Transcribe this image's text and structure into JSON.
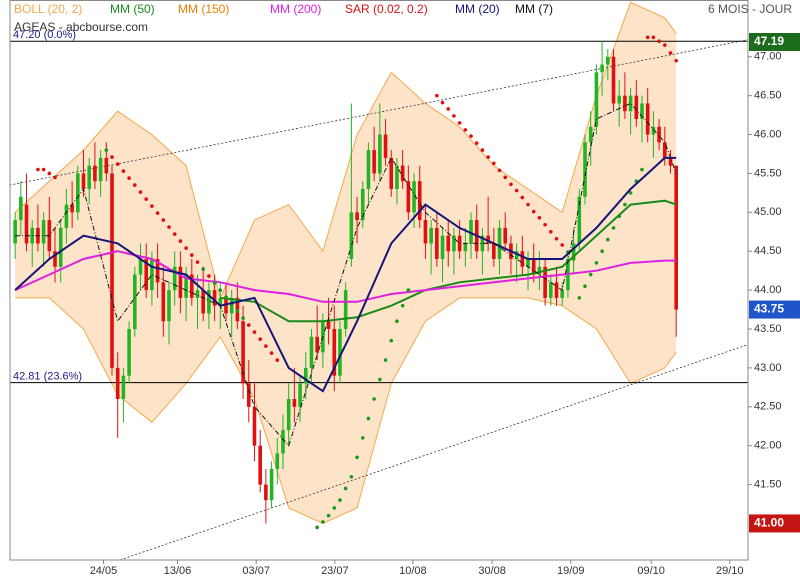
{
  "chart_data": {
    "type": "candlestick",
    "title": "AGEAS - abcbourse.com",
    "period": "6 MOIS - JOUR",
    "up_color": "#22b422",
    "down_color": "#e01010",
    "xlim": [
      -0.9,
      128.6
    ],
    "ylim": [
      40.53,
      47.73
    ],
    "xticks": [
      {
        "value": 15.5,
        "label": "24/05"
      },
      {
        "value": 28.5,
        "label": "13/06"
      },
      {
        "value": 42.3,
        "label": "03/07"
      },
      {
        "value": 56.1,
        "label": "23/07"
      },
      {
        "value": 69.8,
        "label": "10/08"
      },
      {
        "value": 83.7,
        "label": "30/08"
      },
      {
        "value": 97.5,
        "label": "19/09"
      },
      {
        "value": 111.6,
        "label": "09/10"
      },
      {
        "value": 125.4,
        "label": "29/10"
      }
    ],
    "yticks": [
      {
        "value": 41.5,
        "label": "41.50"
      },
      {
        "value": 42,
        "label": "42.00"
      },
      {
        "value": 42.5,
        "label": "42.50"
      },
      {
        "value": 43,
        "label": "43.00"
      },
      {
        "value": 43.5,
        "label": "43.50"
      },
      {
        "value": 44,
        "label": "44.00"
      },
      {
        "value": 44.5,
        "label": "44.50"
      },
      {
        "value": 45,
        "label": "45.00"
      },
      {
        "value": 45.5,
        "label": "45.50"
      },
      {
        "value": 46,
        "label": "46.00"
      },
      {
        "value": 46.5,
        "label": "46.50"
      },
      {
        "value": 47,
        "label": "47.00"
      }
    ],
    "candles": [
      [
        44.6,
        45.0,
        44.4,
        44.9
      ],
      [
        44.9,
        45.4,
        44.7,
        45.2
      ],
      [
        45.1,
        45.5,
        44.5,
        44.6
      ],
      [
        44.6,
        44.9,
        44.3,
        44.8
      ],
      [
        44.8,
        45.1,
        44.5,
        44.6
      ],
      [
        44.6,
        45.0,
        44.3,
        44.9
      ],
      [
        44.9,
        45.2,
        44.4,
        44.5
      ],
      [
        44.5,
        44.8,
        44.1,
        44.3
      ],
      [
        44.3,
        44.9,
        44.1,
        44.8
      ],
      [
        44.8,
        45.3,
        44.6,
        45.1
      ],
      [
        45.1,
        45.4,
        44.8,
        45.0
      ],
      [
        45.0,
        45.6,
        44.9,
        45.5
      ],
      [
        45.5,
        45.8,
        45.2,
        45.3
      ],
      [
        45.3,
        45.7,
        45.1,
        45.6
      ],
      [
        45.6,
        45.9,
        45.3,
        45.4
      ],
      [
        45.4,
        45.8,
        45.2,
        45.7
      ],
      [
        45.7,
        45.9,
        45.4,
        45.5
      ],
      [
        45.5,
        45.6,
        42.9,
        43.0
      ],
      [
        43.0,
        43.2,
        42.1,
        42.6
      ],
      [
        42.6,
        43.0,
        42.3,
        42.9
      ],
      [
        42.9,
        43.6,
        42.8,
        43.5
      ],
      [
        43.5,
        44.3,
        43.4,
        44.2
      ],
      [
        44.2,
        44.6,
        44.0,
        44.4
      ],
      [
        44.4,
        44.6,
        43.9,
        44.0
      ],
      [
        44.0,
        44.5,
        43.8,
        44.4
      ],
      [
        44.4,
        44.6,
        43.9,
        44.1
      ],
      [
        44.1,
        44.3,
        43.4,
        43.6
      ],
      [
        43.6,
        44.1,
        43.3,
        44.0
      ],
      [
        44.0,
        44.5,
        43.8,
        44.3
      ],
      [
        44.3,
        44.5,
        43.7,
        43.9
      ],
      [
        43.9,
        44.3,
        43.6,
        44.2
      ],
      [
        44.2,
        44.4,
        43.8,
        43.9
      ],
      [
        43.9,
        44.2,
        43.5,
        44.0
      ],
      [
        44.0,
        44.3,
        43.6,
        43.7
      ],
      [
        43.7,
        44.1,
        43.5,
        44.0
      ],
      [
        44.0,
        44.2,
        43.6,
        43.8
      ],
      [
        43.8,
        44.1,
        43.5,
        43.9
      ],
      [
        43.9,
        44.1,
        43.6,
        43.7
      ],
      [
        43.7,
        44.0,
        43.4,
        43.9
      ],
      [
        43.9,
        44.1,
        43.5,
        43.6
      ],
      [
        43.6,
        43.8,
        42.6,
        42.8
      ],
      [
        42.8,
        43.1,
        42.3,
        42.5
      ],
      [
        42.5,
        42.8,
        41.8,
        42.0
      ],
      [
        42.0,
        42.2,
        41.4,
        41.5
      ],
      [
        41.5,
        41.7,
        41.0,
        41.3
      ],
      [
        41.3,
        41.8,
        41.2,
        41.7
      ],
      [
        41.7,
        42.1,
        41.5,
        41.9
      ],
      [
        41.9,
        42.4,
        41.7,
        42.2
      ],
      [
        42.2,
        42.8,
        42.0,
        42.6
      ],
      [
        42.6,
        43.0,
        42.3,
        42.5
      ],
      [
        42.5,
        42.9,
        42.3,
        42.8
      ],
      [
        42.8,
        43.2,
        42.6,
        43.0
      ],
      [
        43.0,
        43.5,
        42.8,
        43.4
      ],
      [
        43.4,
        43.8,
        43.1,
        43.2
      ],
      [
        43.2,
        43.7,
        43.0,
        43.6
      ],
      [
        43.6,
        43.9,
        43.3,
        43.5
      ],
      [
        43.5,
        43.8,
        42.7,
        42.9
      ],
      [
        42.9,
        43.6,
        42.8,
        43.5
      ],
      [
        43.5,
        44.1,
        43.4,
        44.0
      ],
      [
        44.4,
        46.4,
        44.3,
        45.0
      ],
      [
        45.0,
        45.2,
        44.6,
        44.9
      ],
      [
        44.9,
        45.4,
        44.8,
        45.3
      ],
      [
        45.3,
        45.9,
        45.1,
        45.8
      ],
      [
        45.8,
        46.1,
        45.4,
        45.5
      ],
      [
        45.5,
        46.4,
        45.4,
        46.0
      ],
      [
        46.0,
        46.2,
        45.6,
        45.7
      ],
      [
        45.7,
        45.8,
        45.2,
        45.3
      ],
      [
        45.3,
        45.7,
        45.1,
        45.6
      ],
      [
        45.6,
        45.8,
        45.3,
        45.4
      ],
      [
        45.4,
        45.6,
        44.9,
        45.0
      ],
      [
        45.0,
        45.5,
        44.8,
        45.4
      ],
      [
        45.4,
        45.6,
        44.8,
        44.9
      ],
      [
        44.9,
        45.1,
        44.4,
        44.6
      ],
      [
        44.6,
        44.9,
        44.2,
        44.8
      ],
      [
        44.8,
        45.0,
        44.3,
        44.4
      ],
      [
        44.4,
        44.8,
        44.1,
        44.7
      ],
      [
        44.7,
        44.9,
        44.3,
        44.5
      ],
      [
        44.5,
        44.8,
        44.2,
        44.7
      ],
      [
        44.7,
        44.9,
        44.4,
        44.5
      ],
      [
        44.5,
        44.8,
        44.3,
        44.6
      ],
      [
        44.6,
        45.0,
        44.4,
        44.9
      ],
      [
        44.9,
        45.1,
        44.4,
        44.5
      ],
      [
        44.5,
        44.8,
        44.2,
        44.7
      ],
      [
        44.7,
        45.2,
        44.5,
        44.6
      ],
      [
        44.6,
        44.8,
        44.3,
        44.4
      ],
      [
        44.4,
        44.9,
        44.2,
        44.8
      ],
      [
        44.8,
        45.0,
        44.5,
        44.6
      ],
      [
        44.6,
        44.7,
        44.2,
        44.4
      ],
      [
        44.4,
        44.6,
        44.1,
        44.5
      ],
      [
        44.5,
        44.7,
        44.2,
        44.3
      ],
      [
        44.3,
        44.5,
        44.0,
        44.4
      ],
      [
        44.4,
        44.6,
        44.1,
        44.2
      ],
      [
        44.2,
        44.5,
        44.0,
        44.3
      ],
      [
        44.3,
        44.4,
        43.8,
        43.9
      ],
      [
        43.9,
        44.2,
        43.8,
        44.1
      ],
      [
        44.1,
        44.3,
        43.8,
        43.9
      ],
      [
        43.9,
        44.1,
        43.8,
        44.0
      ],
      [
        44.0,
        44.5,
        43.9,
        44.4
      ],
      [
        44.4,
        44.8,
        44.2,
        44.6
      ],
      [
        44.6,
        45.3,
        44.5,
        45.2
      ],
      [
        45.2,
        46.0,
        45.1,
        45.9
      ],
      [
        45.9,
        46.3,
        45.6,
        46.1
      ],
      [
        46.1,
        46.9,
        46.0,
        46.8
      ],
      [
        46.8,
        47.2,
        46.5,
        46.9
      ],
      [
        46.9,
        47.1,
        46.7,
        47.0
      ],
      [
        47.0,
        47.1,
        46.3,
        46.4
      ],
      [
        46.4,
        46.7,
        46.1,
        46.5
      ],
      [
        46.5,
        46.8,
        46.2,
        46.3
      ],
      [
        46.3,
        46.6,
        46.0,
        46.5
      ],
      [
        46.5,
        46.7,
        46.1,
        46.2
      ],
      [
        46.2,
        46.5,
        45.9,
        46.4
      ],
      [
        46.4,
        46.6,
        45.9,
        46.0
      ],
      [
        46.0,
        46.3,
        45.7,
        46.1
      ],
      [
        46.1,
        46.2,
        45.8,
        45.9
      ],
      [
        45.9,
        46.1,
        45.6,
        45.7
      ],
      [
        45.7,
        45.8,
        45.5,
        45.6
      ],
      [
        45.6,
        45.6,
        43.4,
        43.75
      ]
    ],
    "series": [
      {
        "name": "BOLL (20, 2)",
        "color": "#f5a84a",
        "kind": "band",
        "x": [
          0,
          6,
          12,
          18,
          24,
          30,
          36,
          42,
          48,
          54,
          60,
          66,
          72,
          78,
          84,
          90,
          96,
          102,
          108,
          114,
          116
        ],
        "upper": [
          45.0,
          45.4,
          45.8,
          46.3,
          46.0,
          45.6,
          43.9,
          44.9,
          45.1,
          44.5,
          46.0,
          46.8,
          46.4,
          46.1,
          45.6,
          45.3,
          45.0,
          46.5,
          47.7,
          47.5,
          47.3
        ],
        "lower": [
          43.9,
          43.9,
          43.5,
          42.65,
          42.3,
          42.8,
          43.4,
          42.6,
          41.2,
          41.0,
          41.2,
          42.8,
          43.6,
          43.9,
          43.9,
          43.9,
          43.8,
          43.5,
          42.8,
          43.0,
          43.2
        ]
      },
      {
        "name": "MM (50)",
        "color": "#1a8a1a",
        "kind": "line",
        "x": [
          0,
          6,
          12,
          18,
          24,
          30,
          36,
          42,
          48,
          54,
          60,
          66,
          72,
          78,
          84,
          90,
          96,
          102,
          108,
          114,
          116
        ],
        "values": [
          null,
          null,
          null,
          null,
          null,
          null,
          43.9,
          43.85,
          43.6,
          43.6,
          43.65,
          43.8,
          44.0,
          44.1,
          44.15,
          44.2,
          44.3,
          44.7,
          45.1,
          45.15,
          45.1
        ]
      },
      {
        "name": "MM (150)",
        "color": "#f07c00",
        "kind": "legend"
      },
      {
        "name": "MM (200)",
        "color": "#e020e0",
        "kind": "line",
        "x": [
          0,
          6,
          12,
          18,
          24,
          30,
          36,
          42,
          48,
          54,
          60,
          66,
          72,
          78,
          84,
          90,
          96,
          102,
          108,
          114,
          116
        ],
        "values": [
          44.0,
          44.2,
          44.4,
          44.5,
          44.4,
          44.15,
          44.1,
          44.0,
          43.95,
          43.85,
          43.85,
          43.95,
          44.0,
          44.05,
          44.1,
          44.15,
          44.2,
          44.25,
          44.35,
          44.38,
          44.38
        ]
      },
      {
        "name": "SAR (0.02, 0.2)",
        "color": "#e01010",
        "up_color": "#1a9a1a",
        "kind": "sar",
        "x": [
          4,
          5,
          6,
          7,
          16,
          17,
          18,
          19,
          20,
          21,
          22,
          23,
          24,
          25,
          26,
          27,
          28,
          29,
          30,
          31,
          32,
          33,
          34,
          35,
          36,
          37,
          38,
          39,
          40,
          41,
          42,
          43,
          44,
          45,
          46,
          53,
          54,
          55,
          56,
          57,
          58,
          59,
          60,
          61,
          62,
          63,
          64,
          65,
          66,
          67,
          68,
          69,
          74,
          75,
          76,
          77,
          78,
          79,
          80,
          81,
          82,
          83,
          84,
          85,
          86,
          87,
          88,
          89,
          90,
          91,
          92,
          93,
          94,
          95,
          96,
          97,
          98,
          99,
          100,
          101,
          102,
          103,
          104,
          105,
          106,
          107,
          108,
          109,
          110,
          111,
          112,
          113,
          114,
          115,
          116
        ],
        "values": [
          45.55,
          45.55,
          45.5,
          45.45,
          45.8,
          45.71,
          45.62,
          45.53,
          45.44,
          45.35,
          45.26,
          45.17,
          45.08,
          44.99,
          44.9,
          44.81,
          44.72,
          44.63,
          44.54,
          44.45,
          44.36,
          44.27,
          44.18,
          44.09,
          44.0,
          43.91,
          43.82,
          43.73,
          43.64,
          43.55,
          43.46,
          43.37,
          43.28,
          43.19,
          43.1,
          40.95,
          41.02,
          41.1,
          41.2,
          41.3,
          41.45,
          41.6,
          41.85,
          42.1,
          42.35,
          42.6,
          42.85,
          43.1,
          43.35,
          43.6,
          43.8,
          44.0,
          46.5,
          46.41,
          46.33,
          46.24,
          46.15,
          46.06,
          45.98,
          45.89,
          45.8,
          45.71,
          45.63,
          45.54,
          45.45,
          45.36,
          45.28,
          45.19,
          45.1,
          45.01,
          44.93,
          44.84,
          44.75,
          44.66,
          44.58,
          44.49,
          44.4,
          43.9,
          44.05,
          44.2,
          44.35,
          44.5,
          44.65,
          44.8,
          44.95,
          45.1,
          45.25,
          45.4,
          45.55,
          47.25,
          47.25,
          47.2,
          47.15,
          47.05,
          46.95
        ]
      },
      {
        "name": "MM (20)",
        "color": "#14147a",
        "kind": "line",
        "x": [
          0,
          6,
          12,
          18,
          24,
          30,
          36,
          42,
          48,
          54,
          60,
          66,
          72,
          78,
          84,
          90,
          96,
          102,
          108,
          114,
          116
        ],
        "values": [
          44.0,
          44.4,
          44.7,
          44.6,
          44.3,
          44.2,
          43.8,
          43.9,
          43.0,
          42.7,
          43.6,
          44.6,
          45.1,
          44.8,
          44.6,
          44.4,
          44.4,
          44.8,
          45.3,
          45.7,
          45.7
        ]
      },
      {
        "name": "MM (7)",
        "color": "#111111",
        "kind": "dashline",
        "x": [
          0,
          6,
          12,
          18,
          24,
          30,
          36,
          42,
          48,
          54,
          60,
          66,
          72,
          78,
          84,
          90,
          96,
          102,
          108,
          114,
          116
        ],
        "values": [
          44.7,
          44.7,
          45.3,
          43.6,
          44.2,
          44.0,
          43.8,
          42.5,
          42.0,
          43.4,
          44.8,
          45.7,
          45.0,
          44.6,
          44.6,
          44.3,
          44.0,
          46.2,
          46.4,
          45.9,
          45.5
        ]
      }
    ],
    "trendlines": [
      {
        "x": [
          -1,
          128.6
        ],
        "values": [
          45.35,
          47.22
        ]
      },
      {
        "x": [
          18.4,
          128.6
        ],
        "values": [
          40.53,
          43.3
        ]
      }
    ],
    "levels": [
      {
        "value": 47.2,
        "label": "47.20 (0.0%)"
      },
      {
        "value": 42.81,
        "label": "42.81 (23.6%)"
      }
    ],
    "price_labels": [
      {
        "value": 47.19,
        "label": "47.19",
        "color": "#1d6b1d"
      },
      {
        "value": 43.75,
        "label": "43.75",
        "color": "#1f55c8"
      },
      {
        "value": 41,
        "label": "41.00",
        "color": "#c41414"
      }
    ]
  }
}
